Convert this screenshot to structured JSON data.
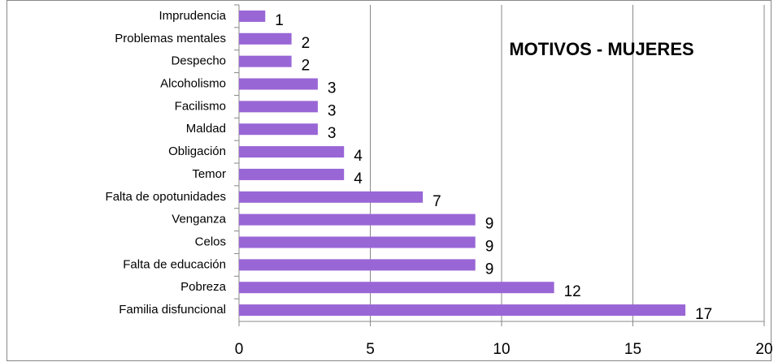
{
  "chart_data": {
    "type": "bar",
    "orientation": "horizontal",
    "title": "MOTIVOS  - MUJERES",
    "categories": [
      "Imprudencia",
      "Problemas mentales",
      "Despecho",
      "Alcoholismo",
      "Facilismo",
      "Maldad",
      "Obligación",
      "Temor",
      "Falta de opotunidades",
      "Venganza",
      "Celos",
      "Falta de educación",
      "Pobreza",
      "Familia disfuncional"
    ],
    "values": [
      1,
      2,
      2,
      3,
      3,
      3,
      4,
      4,
      7,
      9,
      9,
      9,
      12,
      17
    ],
    "color": "#9966d6",
    "xlim": [
      0,
      20
    ],
    "xticks": [
      0,
      5,
      10,
      15,
      20
    ],
    "grid": true
  }
}
